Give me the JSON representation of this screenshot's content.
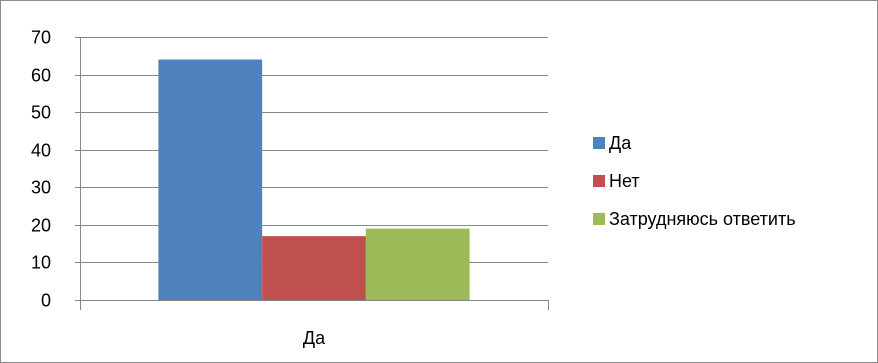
{
  "chart_data": {
    "type": "bar",
    "categories": [
      "Да"
    ],
    "series": [
      {
        "name": "Да",
        "values": [
          64
        ],
        "color": "#4f81bd"
      },
      {
        "name": "Нет",
        "values": [
          17
        ],
        "color": "#c0504d"
      },
      {
        "name": "Затрудняюсь ответить",
        "values": [
          19
        ],
        "color": "#9bbb59"
      }
    ],
    "ylim": [
      0,
      70
    ],
    "yticks": [
      "0",
      "10",
      "20",
      "30",
      "40",
      "50",
      "60",
      "70"
    ],
    "grid": true,
    "legend_position": "right"
  }
}
